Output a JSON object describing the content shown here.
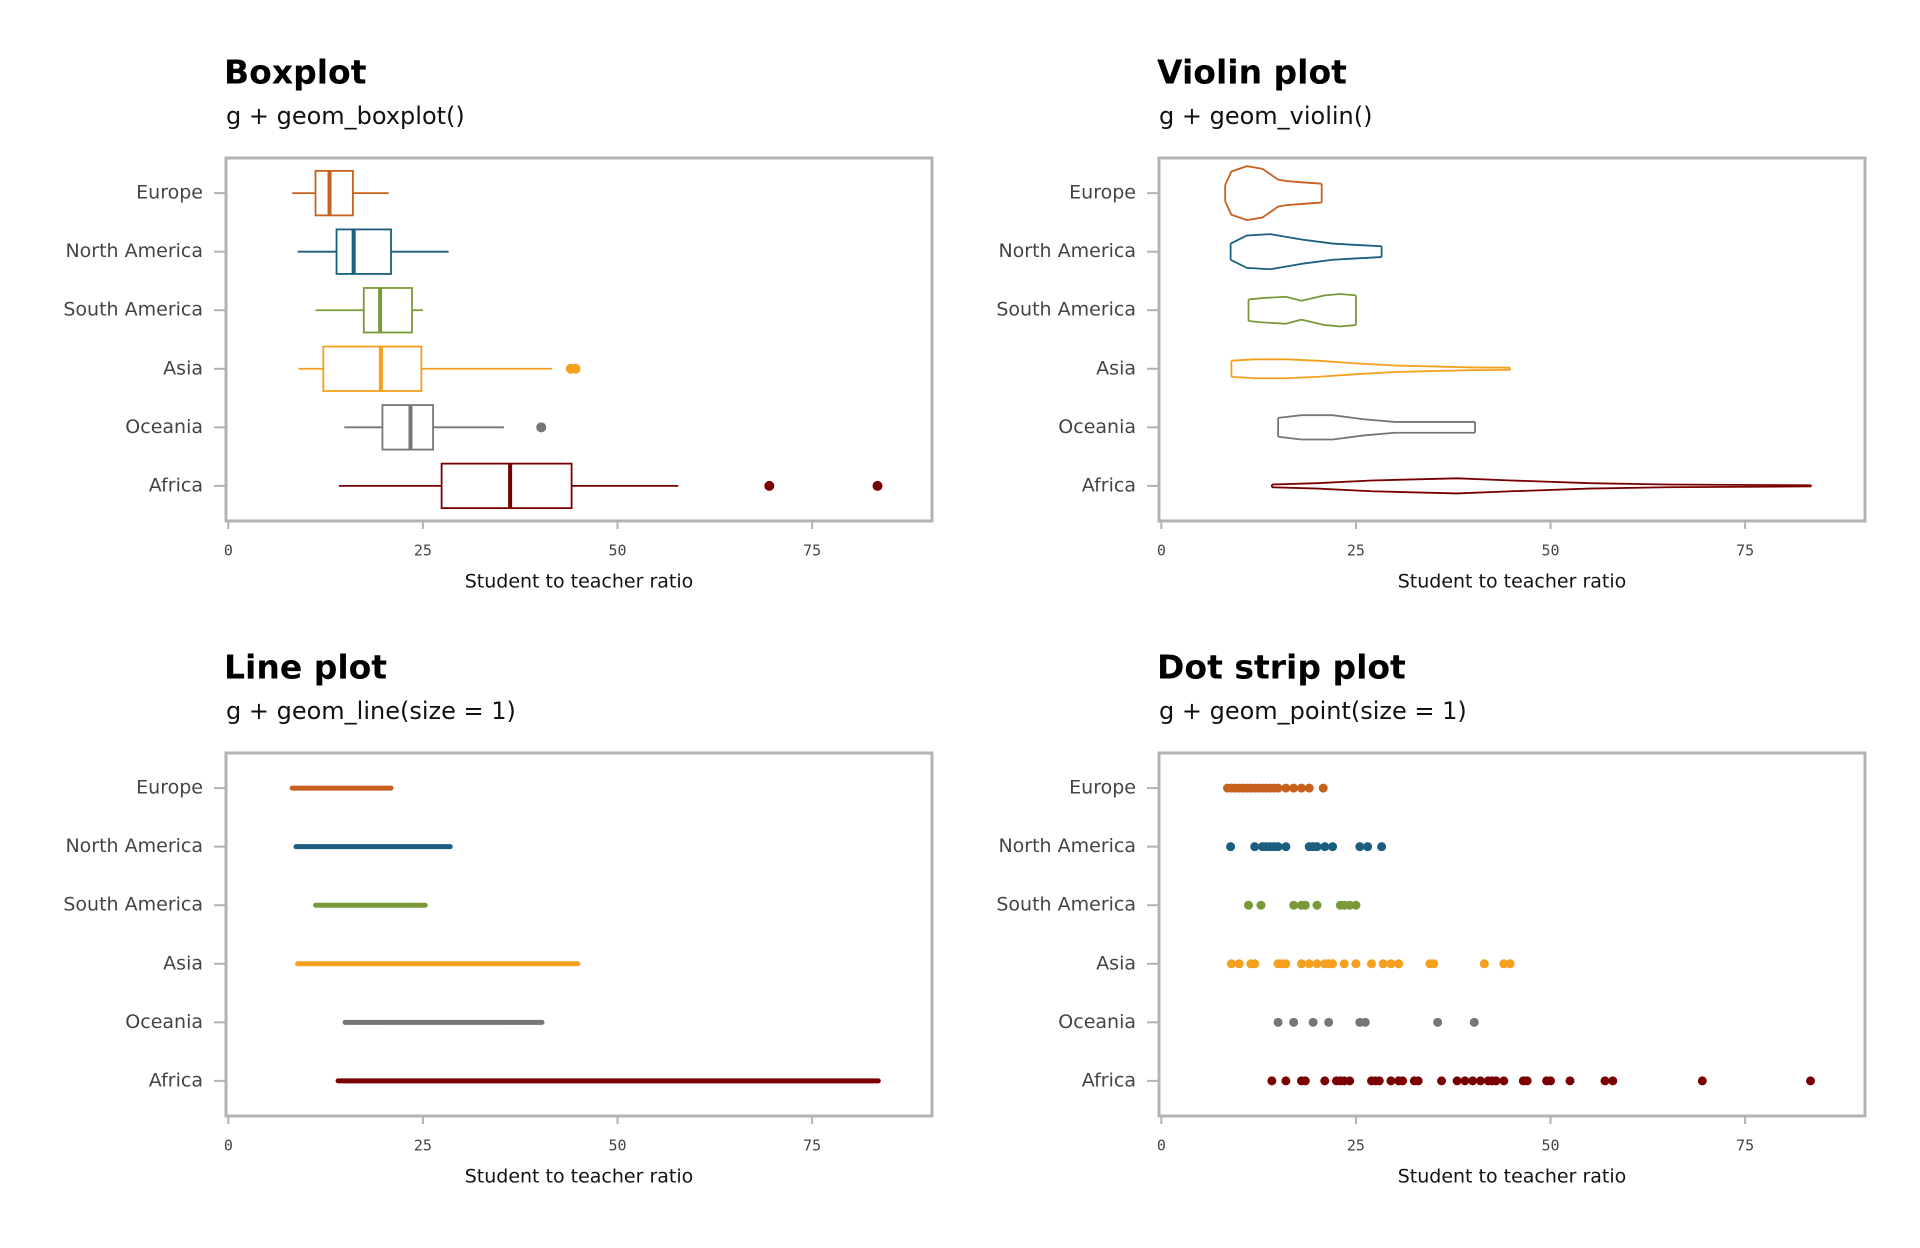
{
  "chart_data": [
    {
      "type": "boxplot",
      "title": "Boxplot",
      "subtitle": "g + geom_boxplot()",
      "xlabel": "Student to teacher ratio",
      "xlim": [
        -0.3,
        90.4
      ],
      "xticks": [
        0,
        25,
        50,
        75
      ],
      "series": [
        {
          "name": "Europe",
          "color": "#c8601e",
          "min": 8.2,
          "q1": 11.2,
          "median": 13.0,
          "q3": 16.0,
          "max": 20.6,
          "outliers": []
        },
        {
          "name": "North America",
          "color": "#1b5e80",
          "min": 8.9,
          "q1": 13.9,
          "median": 16.1,
          "q3": 20.9,
          "max": 28.3,
          "outliers": []
        },
        {
          "name": "South America",
          "color": "#7a9a3a",
          "min": 11.2,
          "q1": 17.4,
          "median": 19.5,
          "q3": 23.6,
          "max": 25.0,
          "outliers": []
        },
        {
          "name": "Asia",
          "color": "#f5a01f",
          "min": 9.0,
          "q1": 12.2,
          "median": 19.6,
          "q3": 24.8,
          "max": 41.6,
          "outliers": [
            44.0,
            44.6
          ]
        },
        {
          "name": "Oceania",
          "color": "#767676",
          "min": 14.9,
          "q1": 19.8,
          "median": 23.4,
          "q3": 26.3,
          "max": 35.4,
          "outliers": [
            40.2
          ]
        },
        {
          "name": "Africa",
          "color": "#7a0000",
          "min": 14.2,
          "q1": 27.4,
          "median": 36.2,
          "q3": 44.1,
          "max": 57.8,
          "outliers": [
            69.5,
            83.4
          ]
        }
      ]
    },
    {
      "type": "violin",
      "title": "Violin plot",
      "subtitle": "g + geom_violin()",
      "xlabel": "Student to teacher ratio",
      "xlim": [
        -0.3,
        90.4
      ],
      "xticks": [
        0,
        25,
        50,
        75
      ],
      "series": [
        {
          "name": "Europe",
          "color": "#c8601e",
          "x": [
            8.2,
            9,
            11,
            13,
            15,
            16,
            18,
            20.6
          ],
          "widths": [
            0.3,
            0.8,
            1,
            0.9,
            0.5,
            0.45,
            0.4,
            0.35
          ]
        },
        {
          "name": "North America",
          "color": "#1b5e80",
          "x": [
            8.9,
            11,
            14,
            18,
            22,
            25,
            28.3
          ],
          "widths": [
            0.3,
            0.6,
            0.65,
            0.45,
            0.3,
            0.25,
            0.2
          ]
        },
        {
          "name": "South America",
          "color": "#7a9a3a",
          "x": [
            11.2,
            13,
            16,
            18,
            21,
            23,
            25
          ],
          "widths": [
            0.4,
            0.45,
            0.5,
            0.35,
            0.55,
            0.6,
            0.55
          ]
        },
        {
          "name": "Asia",
          "color": "#f5a01f",
          "x": [
            9,
            12,
            16,
            20,
            25,
            30,
            40,
            44.8
          ],
          "widths": [
            0.3,
            0.35,
            0.35,
            0.3,
            0.2,
            0.12,
            0.05,
            0.04
          ]
        },
        {
          "name": "Oceania",
          "color": "#767676",
          "x": [
            15,
            18,
            22,
            26,
            30,
            35,
            40.3
          ],
          "widths": [
            0.35,
            0.45,
            0.45,
            0.3,
            0.2,
            0.2,
            0.2
          ]
        },
        {
          "name": "Africa",
          "color": "#7a0000",
          "x": [
            14.2,
            20,
            27,
            38,
            45,
            55,
            65,
            83.5
          ],
          "widths": [
            0.05,
            0.1,
            0.2,
            0.28,
            0.2,
            0.1,
            0.05,
            0.02
          ]
        }
      ]
    },
    {
      "type": "line",
      "title": "Line plot",
      "subtitle": "g + geom_line(size = 1)",
      "xlabel": "Student to teacher ratio",
      "xlim": [
        -0.3,
        90.4
      ],
      "xticks": [
        0,
        25,
        50,
        75
      ],
      "series": [
        {
          "name": "Europe",
          "color": "#c8601e",
          "values": [
            8.2,
            20.9
          ]
        },
        {
          "name": "North America",
          "color": "#1b5e80",
          "values": [
            8.7,
            28.5
          ]
        },
        {
          "name": "South America",
          "color": "#7a9a3a",
          "values": [
            11.2,
            25.3
          ]
        },
        {
          "name": "Asia",
          "color": "#f5a01f",
          "values": [
            8.9,
            44.9
          ]
        },
        {
          "name": "Oceania",
          "color": "#767676",
          "values": [
            15.0,
            40.3
          ]
        },
        {
          "name": "Africa",
          "color": "#7a0000",
          "values": [
            14.1,
            83.5
          ]
        }
      ]
    },
    {
      "type": "strip",
      "title": "Dot strip plot",
      "subtitle": "g + geom_point(size = 1)",
      "xlabel": "Student to teacher ratio",
      "xlim": [
        -0.3,
        90.4
      ],
      "xticks": [
        0,
        25,
        50,
        75
      ],
      "series": [
        {
          "name": "Europe",
          "color": "#c8601e",
          "values": [
            8.5,
            9,
            9.5,
            10,
            10.5,
            11,
            11.5,
            12,
            12.5,
            13,
            13.5,
            14,
            14.5,
            15,
            16,
            17,
            18,
            19,
            20.8
          ]
        },
        {
          "name": "North America",
          "color": "#1b5e80",
          "values": [
            8.9,
            12,
            13,
            13.5,
            14,
            14.5,
            15,
            16,
            19,
            19.5,
            20,
            21,
            22,
            25.5,
            26.5,
            28.3
          ]
        },
        {
          "name": "South America",
          "color": "#7a9a3a",
          "values": [
            11.2,
            12.8,
            17,
            18,
            18.5,
            20,
            23,
            23.5,
            24.2,
            25
          ]
        },
        {
          "name": "Asia",
          "color": "#f5a01f",
          "values": [
            9,
            10,
            11.5,
            12,
            15,
            15.5,
            16,
            18,
            19,
            20,
            21,
            21.5,
            22,
            23.5,
            25,
            27,
            28.5,
            29.5,
            30.5,
            34.5,
            35,
            41.5,
            44,
            44.8
          ]
        },
        {
          "name": "Oceania",
          "color": "#767676",
          "values": [
            15,
            17,
            19.5,
            21.5,
            25.5,
            26.2,
            35.5,
            40.2
          ]
        },
        {
          "name": "Africa",
          "color": "#7a0000",
          "values": [
            14.2,
            16,
            18,
            18.5,
            21,
            22.5,
            23,
            23.5,
            24.2,
            27,
            27.5,
            28,
            29.5,
            30.5,
            31,
            32.5,
            33,
            36,
            38,
            39,
            40,
            41,
            42,
            42.5,
            43,
            44,
            46.5,
            47,
            49.5,
            50,
            52.5,
            57,
            58,
            69.5,
            83.4
          ]
        }
      ]
    }
  ]
}
